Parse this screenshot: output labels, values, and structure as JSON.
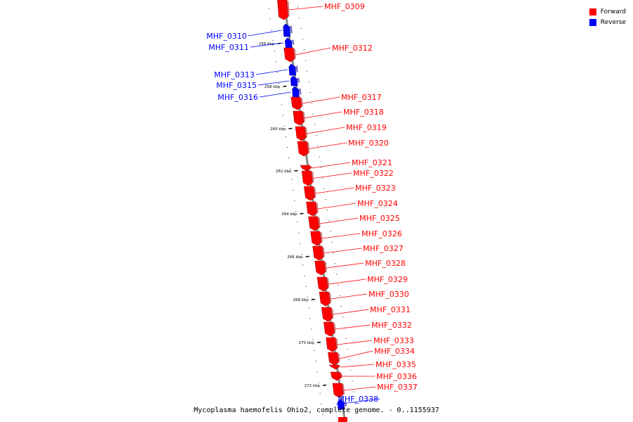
{
  "colors": {
    "forward": "#ff0000",
    "reverse": "#0000ff",
    "backbone": "#888888"
  },
  "legend": [
    {
      "label": "Forward",
      "color": "#ff0000"
    },
    {
      "label": "Reverse",
      "color": "#0000ff"
    }
  ],
  "caption": "Mycoplasma haemofelis Ohio2, complete genome. - 0..1155937",
  "kbp_marks": [
    "256 kbp",
    "258 kbp",
    "260 kbp",
    "262 kbp",
    "264 kbp",
    "266 kbp",
    "268 kbp",
    "270 kbp",
    "272 kbp"
  ],
  "genes": [
    {
      "name": "MHF_0309",
      "strand": "forward"
    },
    {
      "name": "MHF_0310",
      "strand": "reverse"
    },
    {
      "name": "MHF_0311",
      "strand": "reverse"
    },
    {
      "name": "MHF_0312",
      "strand": "forward"
    },
    {
      "name": "MHF_0313",
      "strand": "reverse"
    },
    {
      "name": "MHF_0315",
      "strand": "reverse"
    },
    {
      "name": "MHF_0316",
      "strand": "reverse"
    },
    {
      "name": "MHF_0317",
      "strand": "forward"
    },
    {
      "name": "MHF_0318",
      "strand": "forward"
    },
    {
      "name": "MHF_0319",
      "strand": "forward"
    },
    {
      "name": "MHF_0320",
      "strand": "forward"
    },
    {
      "name": "MHF_0321",
      "strand": "forward"
    },
    {
      "name": "MHF_0322",
      "strand": "forward"
    },
    {
      "name": "MHF_0323",
      "strand": "forward"
    },
    {
      "name": "MHF_0324",
      "strand": "forward"
    },
    {
      "name": "MHF_0325",
      "strand": "forward"
    },
    {
      "name": "MHF_0326",
      "strand": "forward"
    },
    {
      "name": "MHF_0327",
      "strand": "forward"
    },
    {
      "name": "MHF_0328",
      "strand": "forward"
    },
    {
      "name": "MHF_0329",
      "strand": "forward"
    },
    {
      "name": "MHF_0330",
      "strand": "forward"
    },
    {
      "name": "MHF_0331",
      "strand": "forward"
    },
    {
      "name": "MHF_0332",
      "strand": "forward"
    },
    {
      "name": "MHF_0333",
      "strand": "forward"
    },
    {
      "name": "MHF_0334",
      "strand": "forward"
    },
    {
      "name": "MHF_0335",
      "strand": "forward"
    },
    {
      "name": "MHF_0336",
      "strand": "forward"
    },
    {
      "name": "MHF_0337",
      "strand": "forward"
    },
    {
      "name": "MHF_0338",
      "strand": "reverse"
    }
  ]
}
